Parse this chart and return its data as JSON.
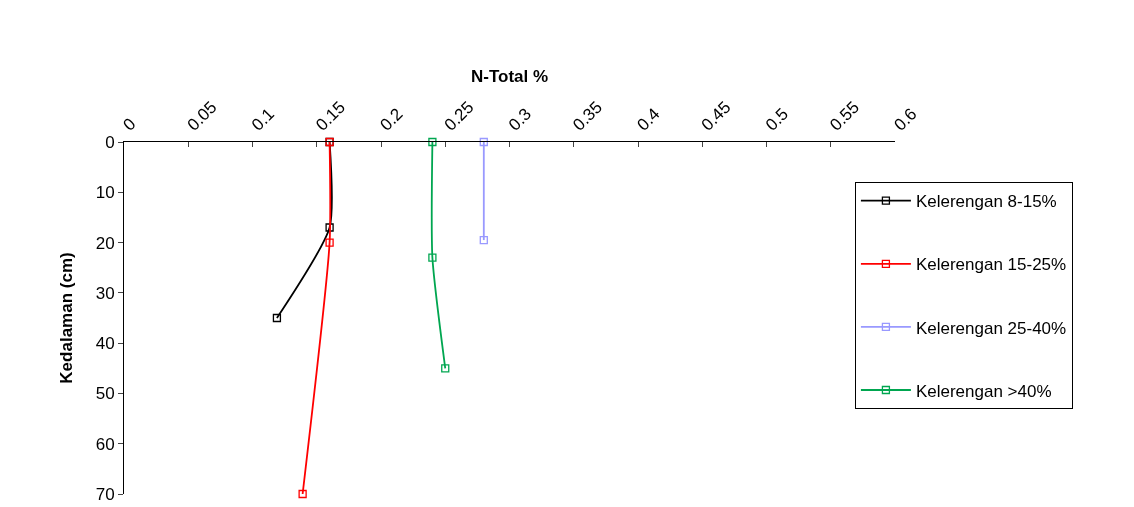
{
  "chart_data": {
    "type": "line",
    "xlabel": "N-Total %",
    "ylabel": "Kedalaman (cm)",
    "xlim": [
      0,
      0.6
    ],
    "xticks": [
      0,
      0.05,
      0.1,
      0.15,
      0.2,
      0.25,
      0.3,
      0.35,
      0.4,
      0.45,
      0.5,
      0.55,
      0.6
    ],
    "ylim": [
      70,
      0
    ],
    "yticks": [
      0,
      10,
      20,
      30,
      40,
      50,
      60,
      70
    ],
    "series": [
      {
        "name": "Kelerengan 8-15%",
        "color": "#000000",
        "x": [
          0.16,
          0.16,
          0.119
        ],
        "values": [
          0,
          17,
          35
        ]
      },
      {
        "name": "Kelerengan 15-25%",
        "color": "#ff0000",
        "x": [
          0.16,
          0.16,
          0.139
        ],
        "values": [
          0,
          20,
          70
        ]
      },
      {
        "name": "Kelerengan 25-40%",
        "color": "#9999ff",
        "x": [
          0.28,
          0.28
        ],
        "values": [
          0,
          19.5
        ]
      },
      {
        "name": "Kelerengan >40%",
        "color": "#00a650",
        "x": [
          0.24,
          0.24,
          0.25
        ],
        "values": [
          0,
          23,
          45
        ]
      }
    ],
    "marker": "square",
    "line_style": "solid",
    "grid": false,
    "legend": "right"
  }
}
